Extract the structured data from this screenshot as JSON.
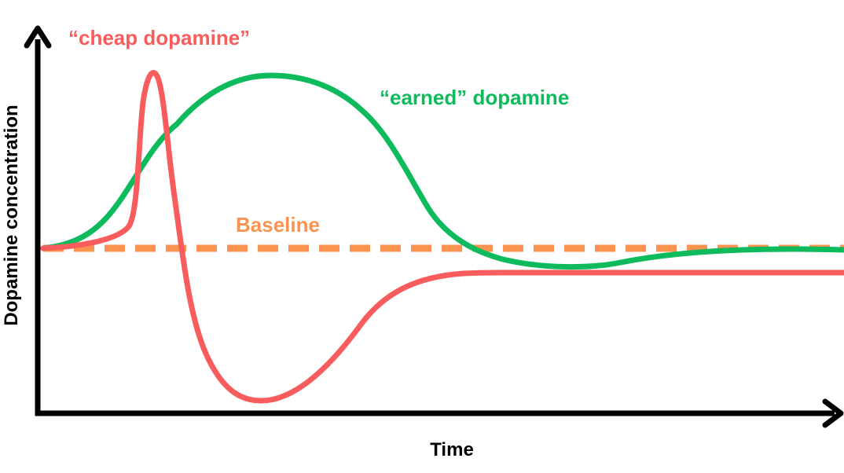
{
  "labels": {
    "cheap": "“cheap dopamine”",
    "earned": "“earned” dopamine",
    "baseline": "Baseline",
    "y_axis": "Dopamine concentration",
    "x_axis": "Time"
  },
  "colors": {
    "cheap": "#f95c5c",
    "earned": "#0dbb5c",
    "baseline": "#fb9350",
    "axes": "#000000"
  }
}
